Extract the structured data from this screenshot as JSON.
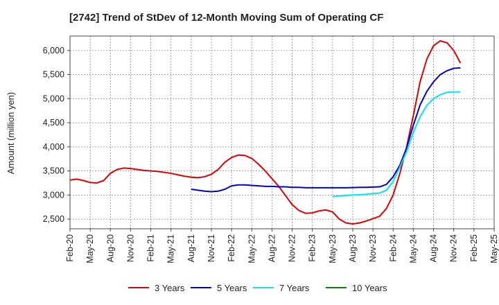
{
  "chart_data": {
    "type": "line",
    "title": "[2742]  Trend of StDev of 12-Month Moving Sum of Operating CF",
    "ylabel": "Amount (million yen)",
    "xlabel": "",
    "ylim": [
      2300,
      6300
    ],
    "yticks": [
      2500,
      3000,
      3500,
      4000,
      4500,
      5000,
      5500,
      6000
    ],
    "ytick_labels": [
      "2,500",
      "3,000",
      "3,500",
      "4,000",
      "4,500",
      "5,000",
      "5,500",
      "6,000"
    ],
    "xticks": [
      "Feb-20",
      "May-20",
      "Aug-20",
      "Nov-20",
      "Feb-21",
      "May-21",
      "Aug-21",
      "Nov-21",
      "Feb-22",
      "May-22",
      "Aug-22",
      "Nov-22",
      "Feb-23",
      "May-23",
      "Aug-23",
      "Nov-23",
      "Feb-24",
      "May-24",
      "Aug-24",
      "Nov-24",
      "Feb-25",
      "May-25"
    ],
    "x_unit": "month index from Feb-20",
    "grid": true,
    "legend_position": "bottom",
    "series": [
      {
        "name": "3 Years",
        "color": "#dd0000",
        "x": [
          0,
          1,
          2,
          3,
          4,
          5,
          6,
          7,
          8,
          9,
          10,
          11,
          12,
          13,
          14,
          15,
          16,
          17,
          18,
          19,
          20,
          21,
          22,
          23,
          24,
          25,
          26,
          27,
          28,
          29,
          30,
          31,
          32,
          33,
          34,
          35,
          36,
          37,
          38,
          39,
          40,
          41,
          42,
          43,
          44,
          45,
          46,
          47,
          48,
          49,
          50,
          51,
          52,
          53,
          54,
          55,
          56,
          57,
          58,
          59,
          60
        ],
        "values": [
          3310,
          3330,
          3300,
          3260,
          3250,
          3300,
          3450,
          3530,
          3560,
          3550,
          3530,
          3510,
          3500,
          3490,
          3470,
          3450,
          3420,
          3390,
          3370,
          3360,
          3380,
          3430,
          3530,
          3680,
          3780,
          3830,
          3820,
          3760,
          3640,
          3500,
          3340,
          3180,
          2990,
          2800,
          2680,
          2620,
          2630,
          2670,
          2690,
          2650,
          2500,
          2420,
          2400,
          2420,
          2460,
          2510,
          2560,
          2720,
          3000,
          3450,
          4000,
          4650,
          5350,
          5820,
          6100,
          6200,
          6160,
          6000,
          5740,
          null,
          null
        ],
        "end_index": 58
      },
      {
        "name": "5 Years",
        "color": "#0000cc",
        "x": [
          18,
          19,
          20,
          21,
          22,
          23,
          24,
          25,
          26,
          27,
          28,
          29,
          30,
          31,
          32,
          33,
          34,
          35,
          36,
          37,
          38,
          39,
          40,
          41,
          42,
          43,
          44,
          45,
          46,
          47,
          48,
          49,
          50,
          51,
          52,
          53,
          54,
          55,
          56,
          57,
          58
        ],
        "values": [
          3120,
          3100,
          3080,
          3070,
          3080,
          3120,
          3190,
          3210,
          3210,
          3200,
          3190,
          3180,
          3180,
          3170,
          3170,
          3160,
          3160,
          3150,
          3150,
          3150,
          3150,
          3150,
          3150,
          3150,
          3155,
          3160,
          3160,
          3165,
          3170,
          3220,
          3380,
          3620,
          3980,
          4450,
          4870,
          5150,
          5350,
          5500,
          5580,
          5630,
          5640
        ]
      },
      {
        "name": "7 Years",
        "color": "#00e5ee",
        "x": [
          39,
          40,
          41,
          42,
          43,
          44,
          45,
          46,
          47,
          48,
          49,
          50,
          51,
          52,
          53,
          54,
          55,
          56,
          57,
          58
        ],
        "values": [
          2970,
          2980,
          2990,
          3000,
          3005,
          3015,
          3030,
          3040,
          3100,
          3280,
          3580,
          3900,
          4300,
          4620,
          4860,
          5000,
          5080,
          5130,
          5140,
          5140
        ]
      },
      {
        "name": "10 Years",
        "color": "#008800",
        "x": [],
        "values": []
      }
    ]
  }
}
